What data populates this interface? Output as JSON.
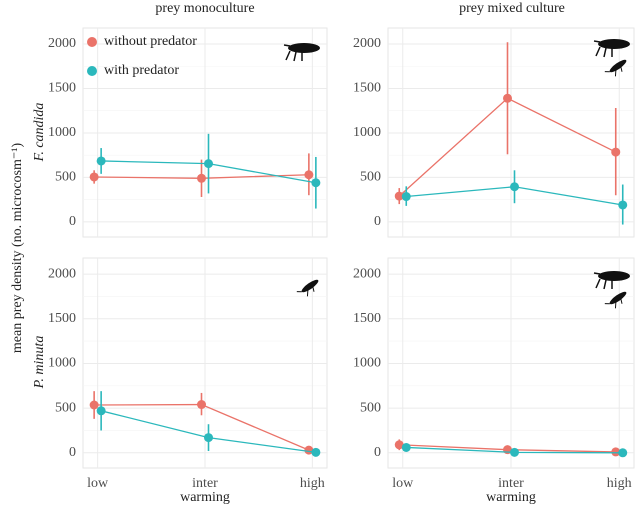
{
  "y_label": "mean prey density (no. microcosm⁻¹)",
  "column_labels": [
    "prey monoculture",
    "prey mixed culture"
  ],
  "row_labels": [
    "F. candida",
    "P. minuta"
  ],
  "chart_data": [
    {
      "type": "line",
      "categories": [
        "low",
        "inter",
        "high"
      ],
      "ylim": [
        -170,
        2180
      ],
      "yticks": [
        0,
        500,
        1000,
        1500,
        2000
      ],
      "grid": true,
      "legend": "top-left",
      "series": [
        {
          "name": "without predator",
          "color": "#ea7369",
          "values": [
            505,
            490,
            530
          ],
          "lower": [
            430,
            280,
            300
          ],
          "upper": [
            580,
            700,
            770
          ]
        },
        {
          "name": "with predator",
          "color": "#2bb8bc",
          "values": [
            685,
            655,
            440
          ],
          "lower": [
            540,
            320,
            150
          ],
          "upper": [
            830,
            990,
            730
          ]
        }
      ]
    },
    {
      "type": "line",
      "categories": [
        "low",
        "inter",
        "high"
      ],
      "ylim": [
        -170,
        2180
      ],
      "yticks": [
        0,
        500,
        1000,
        1500,
        2000
      ],
      "grid": true,
      "series": [
        {
          "name": "without predator",
          "color": "#ea7369",
          "values": [
            290,
            1390,
            785
          ],
          "lower": [
            200,
            760,
            300
          ],
          "upper": [
            380,
            2020,
            1280
          ]
        },
        {
          "name": "with predator",
          "color": "#2bb8bc",
          "values": [
            285,
            395,
            190
          ],
          "lower": [
            180,
            210,
            -30
          ],
          "upper": [
            400,
            580,
            420
          ]
        }
      ]
    },
    {
      "type": "line",
      "categories": [
        "low",
        "inter",
        "high"
      ],
      "xlabel": "warming",
      "ylim": [
        -170,
        2180
      ],
      "yticks": [
        0,
        500,
        1000,
        1500,
        2000
      ],
      "grid": true,
      "series": [
        {
          "name": "without predator",
          "color": "#ea7369",
          "values": [
            535,
            540,
            30
          ],
          "lower": [
            380,
            420,
            0
          ],
          "upper": [
            690,
            670,
            60
          ]
        },
        {
          "name": "with predator",
          "color": "#2bb8bc",
          "values": [
            470,
            170,
            5
          ],
          "lower": [
            250,
            20,
            -10
          ],
          "upper": [
            690,
            320,
            20
          ]
        }
      ]
    },
    {
      "type": "line",
      "categories": [
        "low",
        "inter",
        "high"
      ],
      "xlabel": "warming",
      "ylim": [
        -170,
        2180
      ],
      "yticks": [
        0,
        500,
        1000,
        1500,
        2000
      ],
      "grid": true,
      "series": [
        {
          "name": "without predator",
          "color": "#ea7369",
          "values": [
            90,
            35,
            10
          ],
          "lower": [
            30,
            10,
            0
          ],
          "upper": [
            150,
            60,
            20
          ]
        },
        {
          "name": "with predator",
          "color": "#2bb8bc",
          "values": [
            60,
            5,
            0
          ],
          "lower": [
            30,
            0,
            -5
          ],
          "upper": [
            90,
            10,
            5
          ]
        }
      ]
    }
  ]
}
